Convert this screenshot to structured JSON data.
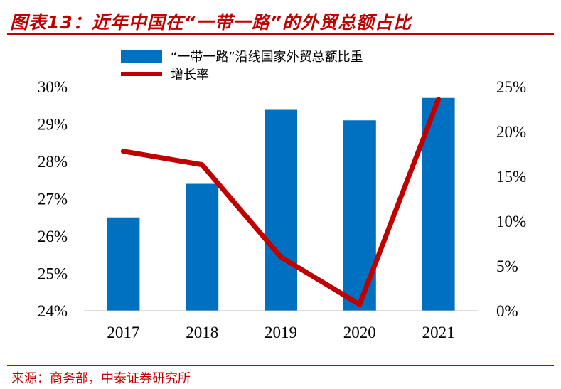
{
  "title": "图表13：近年中国在“一带一路”的外贸总额占比",
  "source": "来源：商务部，中泰证券研究所",
  "colors": {
    "bar": "#0070C0",
    "line": "#C00000",
    "accent": "#C00000"
  },
  "chart_data": {
    "type": "bar",
    "categories": [
      "2017",
      "2018",
      "2019",
      "2020",
      "2021"
    ],
    "series": [
      {
        "name": "“一带一路”沿线国家外贸总额比重",
        "type": "bar",
        "axis": "left",
        "values": [
          26.5,
          27.4,
          29.4,
          29.1,
          29.7
        ]
      },
      {
        "name": "增长率",
        "type": "line",
        "axis": "right",
        "values": [
          17.8,
          16.3,
          6.0,
          0.7,
          23.6
        ]
      }
    ],
    "y_left": {
      "ylim": [
        24,
        30
      ],
      "ticks": [
        "24%",
        "25%",
        "26%",
        "27%",
        "28%",
        "29%",
        "30%"
      ]
    },
    "y_right": {
      "ylim": [
        0,
        25
      ],
      "ticks": [
        "0%",
        "5%",
        "10%",
        "15%",
        "20%",
        "25%"
      ]
    },
    "legend": "top",
    "grid": false
  }
}
